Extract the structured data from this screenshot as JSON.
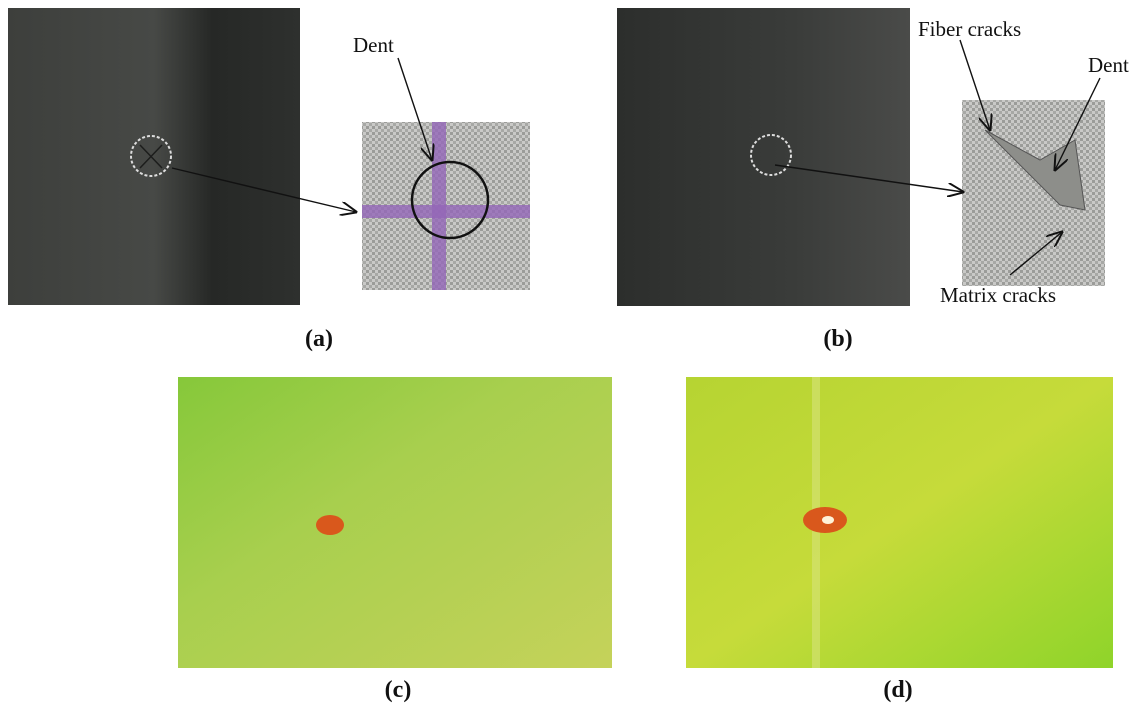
{
  "panels": [
    {
      "label": "(a)",
      "annotations": [
        "Dent"
      ]
    },
    {
      "label": "(b)",
      "annotations": [
        "Fiber cracks",
        "Dent",
        "Matrix cracks"
      ]
    },
    {
      "label": "(c)"
    },
    {
      "label": "(d)"
    }
  ]
}
